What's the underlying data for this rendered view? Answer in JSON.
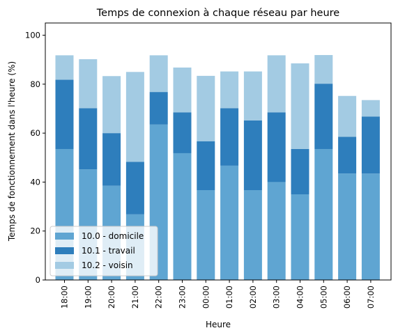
{
  "chart_data": {
    "type": "bar",
    "stacked": true,
    "title": "Temps de connexion à chaque réseau par heure",
    "xlabel": "Heure",
    "ylabel": "Temps de fonctionnement dans l'heure (%)",
    "ylim": [
      0,
      105
    ],
    "yticks": [
      0,
      20,
      40,
      60,
      80,
      100
    ],
    "grid": false,
    "legend_position": "lower-left",
    "categories": [
      "18:00",
      "19:00",
      "20:00",
      "21:00",
      "22:00",
      "23:00",
      "00:00",
      "01:00",
      "02:00",
      "03:00",
      "04:00",
      "05:00",
      "06:00",
      "07:00"
    ],
    "series": [
      {
        "name": "10.0 - domicile",
        "color": "#5fa5d2",
        "values": [
          53.5,
          45.2,
          38.5,
          26.8,
          63.5,
          51.8,
          36.7,
          46.7,
          36.7,
          40.0,
          35.0,
          53.5,
          43.5,
          43.5
        ]
      },
      {
        "name": "10.1 - travail",
        "color": "#2e7ebc",
        "values": [
          28.3,
          25.0,
          21.5,
          21.5,
          13.3,
          16.7,
          20.0,
          23.5,
          28.5,
          28.5,
          18.5,
          26.7,
          15.0,
          23.3
        ]
      },
      {
        "name": "10.2 - voisin",
        "color": "#a3cbe3",
        "values": [
          10.0,
          20.0,
          23.3,
          36.7,
          15.0,
          18.3,
          26.7,
          15.0,
          20.0,
          23.3,
          35.0,
          11.7,
          16.7,
          6.7
        ]
      }
    ]
  }
}
